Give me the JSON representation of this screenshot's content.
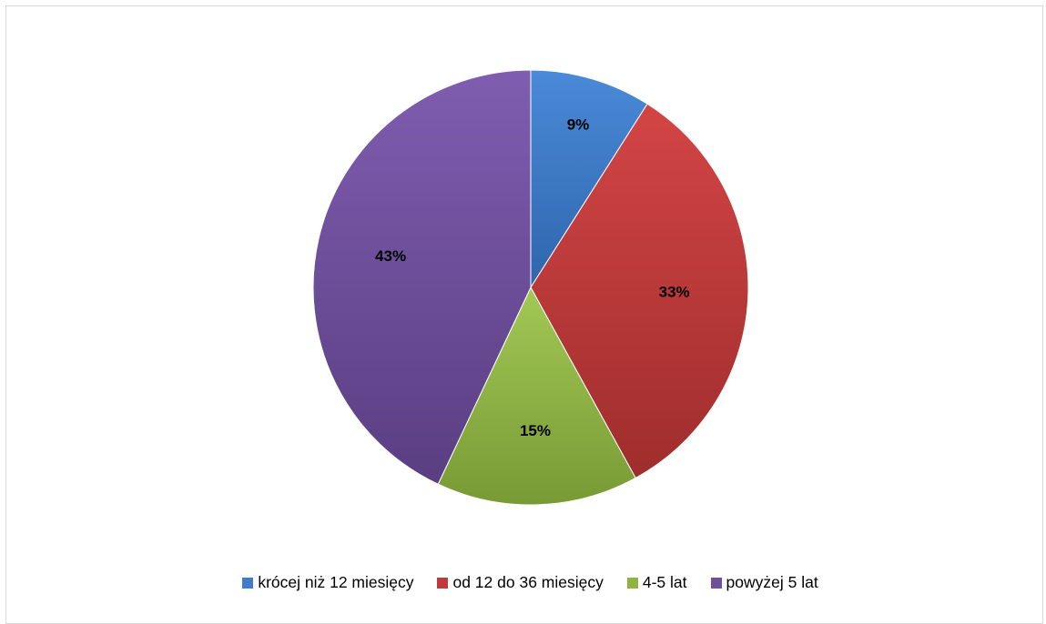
{
  "chart_data": {
    "type": "pie",
    "title": "",
    "legend_position": "bottom",
    "slices": [
      {
        "label": "krócej niż 12 miesięcy",
        "value": 9,
        "display": "9%",
        "color": "#3f7dcc"
      },
      {
        "label": "od 12 do 36 miesięcy",
        "value": 33,
        "display": "33%",
        "color": "#c0393b"
      },
      {
        "label": "4-5 lat",
        "value": 15,
        "display": "15%",
        "color": "#8fb43f"
      },
      {
        "label": "powyżej 5 lat",
        "value": 43,
        "display": "43%",
        "color": "#6e4f9a"
      }
    ]
  }
}
